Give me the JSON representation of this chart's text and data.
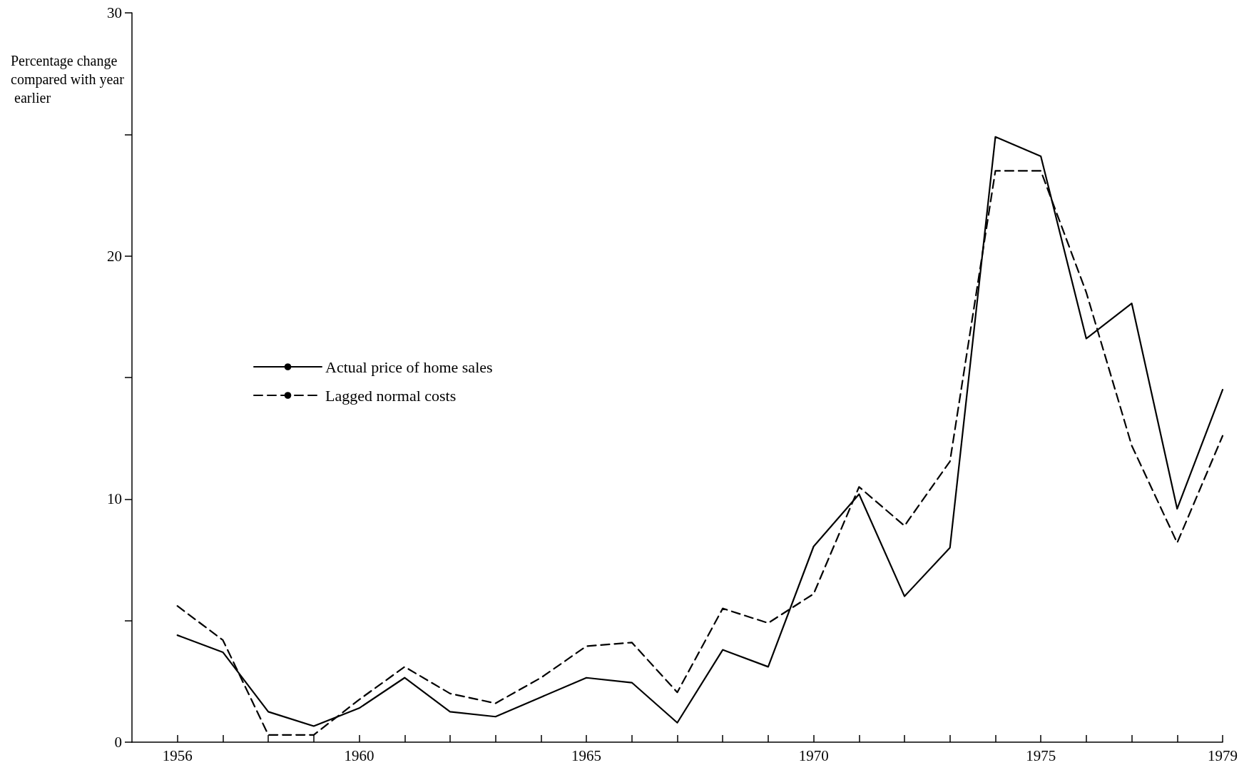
{
  "chart_data": {
    "type": "line",
    "ylabel": "Percentage change compared with year earlier",
    "x": [
      1956,
      1957,
      1958,
      1959,
      1960,
      1961,
      1962,
      1963,
      1964,
      1965,
      1966,
      1967,
      1968,
      1969,
      1970,
      1971,
      1972,
      1973,
      1974,
      1975,
      1976,
      1977,
      1978,
      1979
    ],
    "series": [
      {
        "name": "Actual price of home sales",
        "color": "#000000",
        "line_style": "solid",
        "values": [
          4.4,
          3.7,
          1.25,
          0.66,
          1.4,
          2.65,
          1.25,
          1.05,
          1.85,
          2.65,
          2.45,
          0.8,
          3.8,
          3.1,
          8.05,
          10.2,
          6.0,
          8.0,
          24.9,
          24.1,
          16.6,
          18.05,
          9.6,
          14.5
        ]
      },
      {
        "name": "Lagged normal costs",
        "color": "#000000",
        "line_style": "dashed",
        "values": [
          5.6,
          4.2,
          0.3,
          0.3,
          1.75,
          3.1,
          2.0,
          1.6,
          2.65,
          3.95,
          4.1,
          2.05,
          5.5,
          4.9,
          6.1,
          10.5,
          8.9,
          11.55,
          23.5,
          23.5,
          18.5,
          12.2,
          8.2,
          12.6
        ]
      }
    ],
    "xlim": [
      1955,
      1979
    ],
    "xticks": [
      1956,
      {
        "value": 1957,
        "label": null
      },
      {
        "value": 1958,
        "label": null
      },
      {
        "value": 1959,
        "label": null
      },
      1960,
      {
        "value": 1961,
        "label": null
      },
      {
        "value": 1962,
        "label": null
      },
      {
        "value": 1963,
        "label": null
      },
      {
        "value": 1964,
        "label": null
      },
      1965,
      {
        "value": 1966,
        "label": null
      },
      {
        "value": 1967,
        "label": null
      },
      {
        "value": 1968,
        "label": null
      },
      {
        "value": 1969,
        "label": null
      },
      1970,
      {
        "value": 1971,
        "label": null
      },
      {
        "value": 1972,
        "label": null
      },
      {
        "value": 1973,
        "label": null
      },
      {
        "value": 1974,
        "label": null
      },
      1975,
      {
        "value": 1976,
        "label": null
      },
      {
        "value": 1977,
        "label": null
      },
      {
        "value": 1978,
        "label": null
      },
      1979
    ],
    "ylim": [
      0,
      30
    ],
    "yticks": [
      0,
      {
        "value": 5,
        "label": null
      },
      10,
      {
        "value": 15,
        "label": null
      },
      20,
      {
        "value": 25,
        "label": null
      },
      30
    ],
    "grid": false,
    "legend": "left",
    "marker": "none"
  }
}
